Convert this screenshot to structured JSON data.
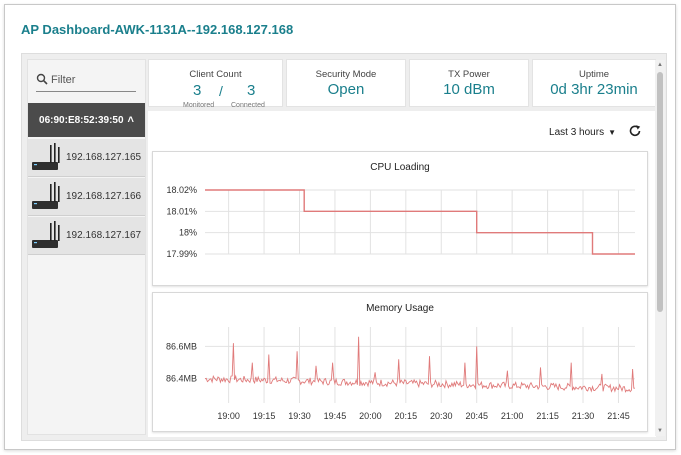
{
  "title": "AP Dashboard-AWK-1131A--192.168.127.168",
  "colors": {
    "accent": "#1a7f8c",
    "line": "#e07a7a",
    "dark_item": "#4b4b4b"
  },
  "sidebar": {
    "filter_placeholder": "Filter",
    "selected_mac": "06:90:E8:52:39:50",
    "devices": [
      {
        "ip": "192.168.127.165",
        "icon": "access-point-icon"
      },
      {
        "ip": "192.168.127.166",
        "icon": "access-point-icon"
      },
      {
        "ip": "192.168.127.167",
        "icon": "access-point-icon"
      }
    ]
  },
  "stats": {
    "client_count": {
      "label": "Client Count",
      "monitored": "3",
      "monitored_label": "Monitored",
      "connected": "3",
      "connected_label": "Connected"
    },
    "security_mode": {
      "label": "Security Mode",
      "value": "Open"
    },
    "tx_power": {
      "label": "TX Power",
      "value": "10 dBm"
    },
    "uptime": {
      "label": "Uptime",
      "value": "0d 3hr 23min"
    }
  },
  "time_range": "Last 3 hours",
  "chart_data": [
    {
      "type": "line",
      "title": "CPU Loading",
      "y_ticks": [
        "18.02%",
        "18.01%",
        "18%",
        "17.99%"
      ],
      "y_tick_values": [
        18.02,
        18.01,
        18.0,
        17.99
      ],
      "ylim": [
        17.99,
        18.02
      ],
      "x_domain": [
        "18:50",
        "21:52"
      ],
      "points": [
        [
          "18:50",
          18.02
        ],
        [
          "19:32",
          18.02
        ],
        [
          "19:32",
          18.01
        ],
        [
          "20:45",
          18.01
        ],
        [
          "20:45",
          18.0
        ],
        [
          "21:34",
          18.0
        ],
        [
          "21:34",
          17.99
        ],
        [
          "21:52",
          17.99
        ]
      ],
      "grid": true
    },
    {
      "type": "line",
      "title": "Memory Usage",
      "y_ticks": [
        "86.6MB",
        "86.4MB"
      ],
      "y_tick_values": [
        86.6,
        86.4
      ],
      "ylim": [
        86.25,
        86.72
      ],
      "x_domain": [
        "18:50",
        "21:52"
      ],
      "x_ticks": [
        "19:00",
        "19:15",
        "19:30",
        "19:45",
        "20:00",
        "20:15",
        "20:30",
        "20:45",
        "21:00",
        "21:15",
        "21:30",
        "21:45"
      ],
      "baseline_start": 86.4,
      "baseline_end": 86.34,
      "spikes": [
        [
          "19:02",
          86.62
        ],
        [
          "19:10",
          86.5
        ],
        [
          "19:17",
          86.55
        ],
        [
          "19:29",
          86.57
        ],
        [
          "19:37",
          86.48
        ],
        [
          "19:44",
          86.5
        ],
        [
          "19:55",
          86.66
        ],
        [
          "20:02",
          86.44
        ],
        [
          "20:12",
          86.52
        ],
        [
          "20:25",
          86.54
        ],
        [
          "20:40",
          86.5
        ],
        [
          "20:45",
          86.6
        ],
        [
          "20:58",
          86.45
        ],
        [
          "21:12",
          86.47
        ],
        [
          "21:25",
          86.5
        ],
        [
          "21:38",
          86.43
        ],
        [
          "21:51",
          86.46
        ]
      ],
      "grid": true
    }
  ]
}
